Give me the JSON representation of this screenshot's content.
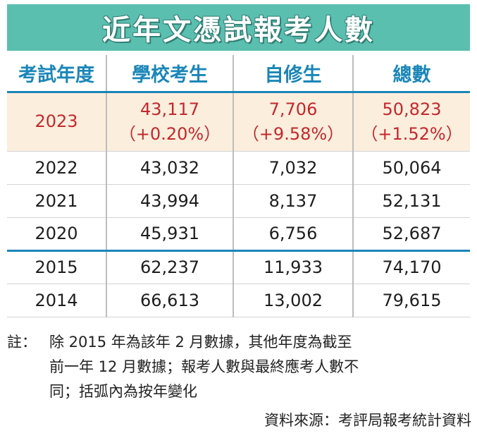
{
  "title": "近年文憑試報考人數",
  "headers": [
    "考試年度",
    "學校考生",
    "自修生",
    "總數"
  ],
  "rows": [
    {
      "year": "2023",
      "school": "43,117",
      "school_change": "（+0.20%）",
      "private": "7,706",
      "private_change": "（+9.58%）",
      "total": "50,823",
      "total_change": "（+1.52%）"
    },
    {
      "year": "2022",
      "school": "43,032",
      "private": "7,032",
      "total": "50,064"
    },
    {
      "year": "2021",
      "school": "43,994",
      "private": "8,137",
      "total": "52,131"
    },
    {
      "year": "2020",
      "school": "45,931",
      "private": "6,756",
      "total": "52,687"
    },
    {
      "year": "2015",
      "school": "62,237",
      "private": "11,933",
      "total": "74,170"
    },
    {
      "year": "2014",
      "school": "66,613",
      "private": "13,002",
      "total": "79,615"
    }
  ],
  "note": {
    "label": "註：",
    "lines": [
      "除 2015 年為該年 2 月數據，其他年度為截至",
      "前一年 12 月數據；報考人數與最終應考人數不",
      "同；括弧內為按年變化"
    ]
  },
  "source": "資料來源：考評局報考統計資料",
  "colors": {
    "title_bg": "#5bbfb0",
    "header_text": "#1a86b8",
    "highlight_bg": "#fbeedd",
    "highlight_text": "#c4282c"
  }
}
